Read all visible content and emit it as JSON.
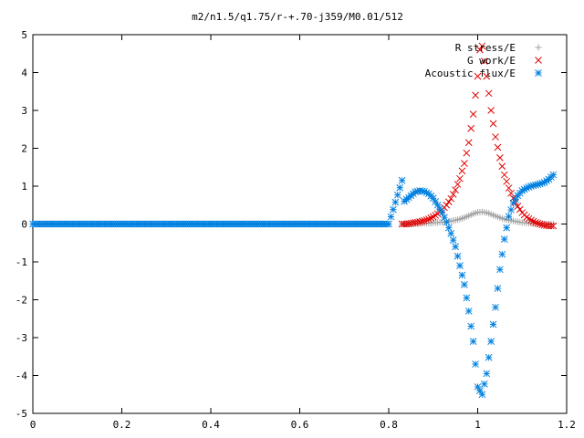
{
  "chart_data": {
    "type": "scatter",
    "title": "m2/n1.5/q1.75/r-+.70-j359/M0.01/512",
    "xlabel": "",
    "ylabel": "",
    "xlim": [
      0,
      1.2
    ],
    "ylim": [
      -5,
      5
    ],
    "x_ticks": [
      "0",
      "0.2",
      "0.4",
      "0.6",
      "0.8",
      "1",
      "1.2"
    ],
    "y_ticks": [
      "5",
      "4",
      "3",
      "2",
      "1",
      "0",
      "-1",
      "-2",
      "-3",
      "-4",
      "-5"
    ],
    "legend_position": "top-right",
    "grid": false,
    "series": [
      {
        "name": "R stress/E",
        "color": "#a0a0a0",
        "marker": "plus",
        "points": [
          [
            0.83,
            0.0
          ],
          [
            0.84,
            0.0
          ],
          [
            0.85,
            0.0
          ],
          [
            0.86,
            0.01
          ],
          [
            0.87,
            0.01
          ],
          [
            0.88,
            0.02
          ],
          [
            0.89,
            0.02
          ],
          [
            0.9,
            0.03
          ],
          [
            0.91,
            0.04
          ],
          [
            0.92,
            0.05
          ],
          [
            0.93,
            0.06
          ],
          [
            0.94,
            0.08
          ],
          [
            0.95,
            0.1
          ],
          [
            0.96,
            0.13
          ],
          [
            0.97,
            0.17
          ],
          [
            0.98,
            0.22
          ],
          [
            0.99,
            0.27
          ],
          [
            1.0,
            0.31
          ],
          [
            1.01,
            0.32
          ],
          [
            1.02,
            0.3
          ],
          [
            1.03,
            0.26
          ],
          [
            1.04,
            0.21
          ],
          [
            1.05,
            0.17
          ],
          [
            1.06,
            0.13
          ],
          [
            1.07,
            0.1
          ],
          [
            1.08,
            0.08
          ],
          [
            1.09,
            0.06
          ],
          [
            1.1,
            0.04
          ],
          [
            1.11,
            0.03
          ],
          [
            1.12,
            0.02
          ],
          [
            1.13,
            0.01
          ],
          [
            1.14,
            0.01
          ],
          [
            1.15,
            0.0
          ],
          [
            1.16,
            0.0
          ],
          [
            1.17,
            0.0
          ]
        ]
      },
      {
        "name": "G work/E",
        "color": "#e00000",
        "marker": "cross",
        "points": [
          [
            0.83,
            0.0
          ],
          [
            0.84,
            0.0
          ],
          [
            0.85,
            0.02
          ],
          [
            0.86,
            0.04
          ],
          [
            0.87,
            0.06
          ],
          [
            0.88,
            0.09
          ],
          [
            0.89,
            0.13
          ],
          [
            0.9,
            0.19
          ],
          [
            0.91,
            0.27
          ],
          [
            0.92,
            0.37
          ],
          [
            0.93,
            0.5
          ],
          [
            0.94,
            0.67
          ],
          [
            0.95,
            0.9
          ],
          [
            0.96,
            1.2
          ],
          [
            0.97,
            1.6
          ],
          [
            0.98,
            2.15
          ],
          [
            0.99,
            2.9
          ],
          [
            1.0,
            3.9
          ],
          [
            1.005,
            4.6
          ],
          [
            1.01,
            4.7
          ],
          [
            1.02,
            3.9
          ],
          [
            1.03,
            3.0
          ],
          [
            1.04,
            2.3
          ],
          [
            1.05,
            1.75
          ],
          [
            1.06,
            1.3
          ],
          [
            1.07,
            0.95
          ],
          [
            1.08,
            0.68
          ],
          [
            1.09,
            0.47
          ],
          [
            1.1,
            0.3
          ],
          [
            1.11,
            0.18
          ],
          [
            1.12,
            0.1
          ],
          [
            1.13,
            0.04
          ],
          [
            1.14,
            0.0
          ],
          [
            1.15,
            -0.03
          ],
          [
            1.16,
            -0.05
          ],
          [
            1.17,
            -0.05
          ]
        ]
      },
      {
        "name": "Acoustic flux/E",
        "color": "#0080e0",
        "marker": "star",
        "points": [
          [
            0.0,
            0.0
          ],
          [
            0.1,
            0.0
          ],
          [
            0.2,
            0.0
          ],
          [
            0.3,
            0.0
          ],
          [
            0.4,
            0.0
          ],
          [
            0.5,
            0.0
          ],
          [
            0.6,
            0.0
          ],
          [
            0.7,
            0.0
          ],
          [
            0.8,
            0.0
          ],
          [
            0.83,
            1.15
          ],
          [
            0.835,
            0.6
          ],
          [
            0.84,
            0.65
          ],
          [
            0.85,
            0.75
          ],
          [
            0.86,
            0.85
          ],
          [
            0.87,
            0.88
          ],
          [
            0.88,
            0.86
          ],
          [
            0.89,
            0.8
          ],
          [
            0.9,
            0.68
          ],
          [
            0.91,
            0.5
          ],
          [
            0.92,
            0.3
          ],
          [
            0.93,
            0.05
          ],
          [
            0.94,
            -0.25
          ],
          [
            0.95,
            -0.6
          ],
          [
            0.96,
            -1.1
          ],
          [
            0.97,
            -1.6
          ],
          [
            0.98,
            -2.3
          ],
          [
            0.99,
            -3.1
          ],
          [
            1.0,
            -4.3
          ],
          [
            1.01,
            -4.5
          ],
          [
            1.02,
            -3.95
          ],
          [
            1.03,
            -3.1
          ],
          [
            1.04,
            -2.2
          ],
          [
            1.05,
            -1.2
          ],
          [
            1.06,
            -0.4
          ],
          [
            1.07,
            0.2
          ],
          [
            1.08,
            0.55
          ],
          [
            1.09,
            0.75
          ],
          [
            1.1,
            0.88
          ],
          [
            1.11,
            0.95
          ],
          [
            1.12,
            1.0
          ],
          [
            1.13,
            1.03
          ],
          [
            1.14,
            1.06
          ],
          [
            1.15,
            1.1
          ],
          [
            1.16,
            1.18
          ],
          [
            1.17,
            1.3
          ]
        ]
      }
    ]
  }
}
